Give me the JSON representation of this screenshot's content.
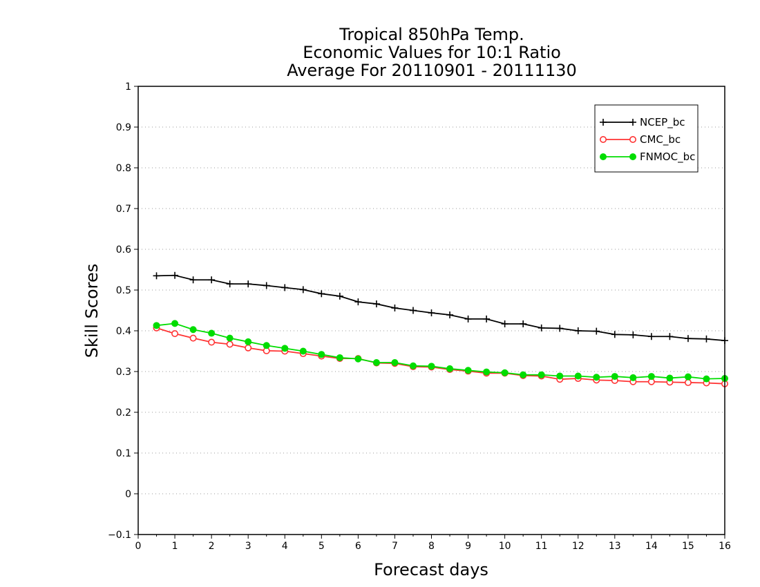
{
  "chart_data": {
    "type": "line",
    "title": [
      "Tropical 850hPa Temp.",
      "Economic Values for 10:1 Ratio",
      "Average For 20110901 - 20111130"
    ],
    "xlabel": "Forecast days",
    "ylabel": "Skill Scores",
    "xlim": [
      0,
      16
    ],
    "ylim": [
      -0.1,
      1
    ],
    "xticks": [
      "0",
      "1",
      "2",
      "3",
      "4",
      "5",
      "6",
      "7",
      "8",
      "9",
      "10",
      "11",
      "12",
      "13",
      "14",
      "15",
      "16"
    ],
    "yticks": [
      "−0.1",
      "0",
      "0.1",
      "0.2",
      "0.3",
      "0.4",
      "0.5",
      "0.6",
      "0.7",
      "0.8",
      "0.9",
      "1"
    ],
    "grid": "horizontal dotted",
    "legend_position": "top-right",
    "x": [
      0.5,
      1,
      1.5,
      2,
      2.5,
      3,
      3.5,
      4,
      4.5,
      5,
      5.5,
      6,
      6.5,
      7,
      7.5,
      8,
      8.5,
      9,
      9.5,
      10,
      10.5,
      11,
      11.5,
      12,
      12.5,
      13,
      13.5,
      14,
      14.5,
      15,
      15.5,
      16
    ],
    "series": [
      {
        "name": "NCEP_bc",
        "color": "#000000",
        "marker": "plus",
        "values": [
          0.535,
          0.536,
          0.525,
          0.525,
          0.515,
          0.515,
          0.511,
          0.506,
          0.501,
          0.491,
          0.485,
          0.471,
          0.466,
          0.456,
          0.45,
          0.444,
          0.439,
          0.429,
          0.429,
          0.417,
          0.417,
          0.407,
          0.406,
          0.4,
          0.399,
          0.391,
          0.39,
          0.386,
          0.386,
          0.381,
          0.38,
          0.376
        ]
      },
      {
        "name": "CMC_bc",
        "color": "#ff3333",
        "marker": "open-circle",
        "values": [
          0.407,
          0.393,
          0.382,
          0.372,
          0.367,
          0.358,
          0.351,
          0.35,
          0.344,
          0.338,
          0.332,
          0.332,
          0.321,
          0.32,
          0.312,
          0.311,
          0.305,
          0.301,
          0.296,
          0.296,
          0.29,
          0.289,
          0.281,
          0.283,
          0.279,
          0.278,
          0.275,
          0.275,
          0.274,
          0.273,
          0.272,
          0.27
        ]
      },
      {
        "name": "FNMOC_bc",
        "color": "#00dd00",
        "marker": "filled-circle",
        "values": [
          0.413,
          0.418,
          0.403,
          0.394,
          0.382,
          0.373,
          0.364,
          0.357,
          0.35,
          0.342,
          0.334,
          0.331,
          0.322,
          0.322,
          0.314,
          0.313,
          0.307,
          0.303,
          0.299,
          0.297,
          0.292,
          0.292,
          0.289,
          0.289,
          0.286,
          0.288,
          0.285,
          0.288,
          0.284,
          0.287,
          0.282,
          0.283
        ]
      }
    ]
  }
}
